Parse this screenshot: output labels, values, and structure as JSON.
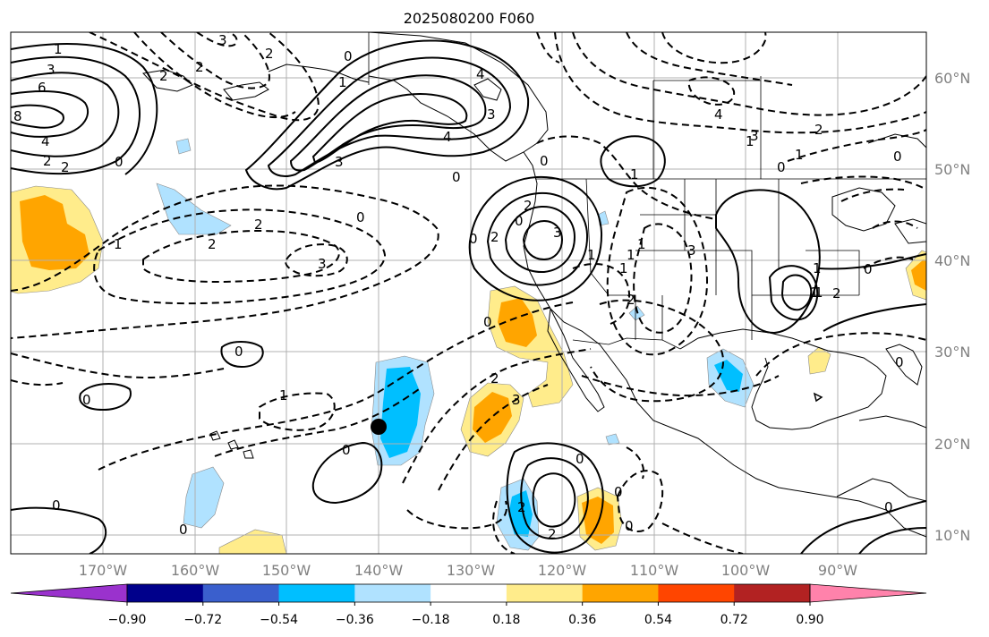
{
  "title": "2025080200 F060",
  "lon_labels": [
    "170°W",
    "160°W",
    "150°W",
    "140°W",
    "130°W",
    "120°W",
    "110°W",
    "100°W",
    "90°W"
  ],
  "lat_labels": [
    "60°N",
    "50°N",
    "40°N",
    "30°N",
    "20°N",
    "10°N"
  ],
  "colorbar": {
    "tick_labels": [
      "−0.90",
      "−0.72",
      "−0.54",
      "−0.36",
      "−0.18",
      "0.18",
      "0.36",
      "0.54",
      "0.72",
      "0.90"
    ],
    "colors": [
      "#9a32cd",
      "#00008b",
      "#3a5fcd",
      "#00bfff",
      "#b0e2ff",
      "#ffffff",
      "#ffec8b",
      "#ffa500",
      "#ff4500",
      "#b22222",
      "#ff82ab"
    ]
  },
  "contour_labels": [
    "3",
    "1",
    "2",
    "6",
    "8",
    "4",
    "2",
    "2",
    "0",
    "3",
    "2",
    "2",
    "0",
    "1",
    "4",
    "3",
    "3",
    "4",
    "0",
    "0",
    "1",
    "3",
    "4",
    "3",
    "2",
    "1",
    "0",
    "0",
    "2",
    "3",
    "2",
    "1",
    "1",
    "2",
    "3",
    "0",
    "0",
    "1",
    "1",
    "1",
    "1",
    "2",
    "2",
    "1",
    "0",
    "1",
    "2",
    "3",
    "0",
    "0",
    "0",
    "1",
    "0",
    "2",
    "0",
    "2",
    "0",
    "0",
    "0",
    "0",
    "0",
    "0",
    "0",
    "1",
    "2"
  ],
  "marker": "storm-center"
}
